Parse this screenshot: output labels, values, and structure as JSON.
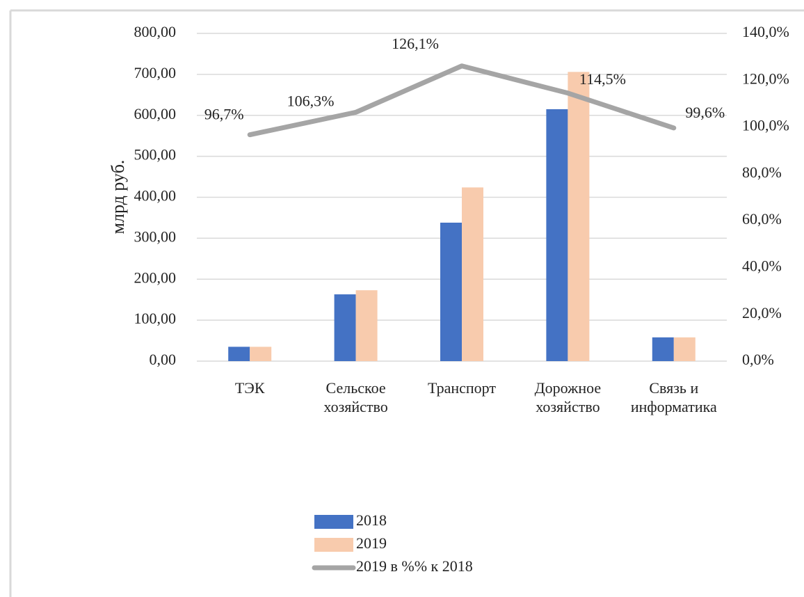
{
  "chart_data": {
    "type": "bar",
    "y_axis_label": "млрд руб.",
    "categories": [
      "ТЭК",
      "Сельское хозяйство",
      "Транспорт",
      "Дорожное хозяйство",
      "Связь и информатика"
    ],
    "series": [
      {
        "name": "2018",
        "type": "bar",
        "color": "#4472c4",
        "values": [
          35,
          163,
          338,
          615,
          58
        ]
      },
      {
        "name": "2019",
        "type": "bar",
        "color": "#f8cbad",
        "values": [
          35,
          173,
          424,
          706,
          58
        ]
      },
      {
        "name": "2019 в %% к 2018",
        "type": "line",
        "axis": "y2",
        "color": "#a5a5a5",
        "values": [
          96.7,
          106.3,
          126.1,
          114.5,
          99.6
        ],
        "value_labels": [
          "96,7%",
          "106,3%",
          "126,1%",
          "114,5%",
          "99,6%"
        ]
      }
    ],
    "ylim": [
      0,
      800
    ],
    "yticks": [
      {
        "value": 0,
        "label": "0,00"
      },
      {
        "value": 100,
        "label": "100,00"
      },
      {
        "value": 200,
        "label": "200,00"
      },
      {
        "value": 300,
        "label": "300,00"
      },
      {
        "value": 400,
        "label": "400,00"
      },
      {
        "value": 500,
        "label": "500,00"
      },
      {
        "value": 600,
        "label": "600,00"
      },
      {
        "value": 700,
        "label": "700,00"
      },
      {
        "value": 800,
        "label": "800,00"
      }
    ],
    "y2lim": [
      0,
      140
    ],
    "y2ticks": [
      {
        "value": 0,
        "label": "0,0%"
      },
      {
        "value": 20,
        "label": "20,0%"
      },
      {
        "value": 40,
        "label": "40,0%"
      },
      {
        "value": 60,
        "label": "60,0%"
      },
      {
        "value": 80,
        "label": "80,0%"
      },
      {
        "value": 100,
        "label": "100,0%"
      },
      {
        "value": 120,
        "label": "120,0%"
      },
      {
        "value": 140,
        "label": "140,0%"
      }
    ],
    "grid": true
  }
}
